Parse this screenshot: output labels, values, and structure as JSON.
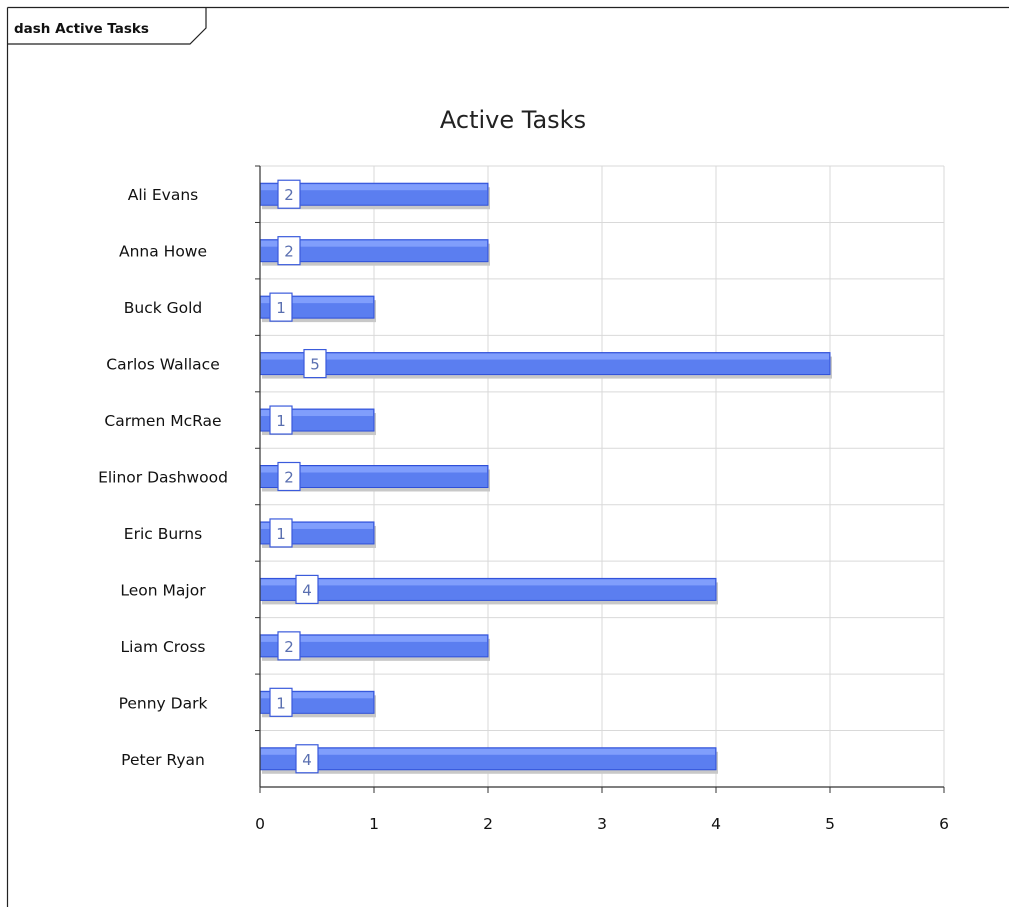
{
  "frame": {
    "label": "dash Active Tasks"
  },
  "colors": {
    "bar_fill": "#5b7ef0",
    "bar_top": "#8aa6ff",
    "bar_stroke": "#2f4fd8",
    "bar_shadow": "#c8c8c8",
    "label_box_stroke": "#3b5bdb",
    "label_text": "#5a6fb0",
    "grid": "#d9d9d9",
    "axis": "#333333"
  },
  "chart_data": {
    "type": "bar",
    "orientation": "horizontal",
    "title": "Active Tasks",
    "xlabel": "",
    "ylabel": "",
    "categories": [
      "Ali Evans",
      "Anna Howe",
      "Buck Gold",
      "Carlos Wallace",
      "Carmen McRae",
      "Elinor Dashwood",
      "Eric Burns",
      "Leon Major",
      "Liam Cross",
      "Penny Dark",
      "Peter Ryan"
    ],
    "values": [
      2,
      2,
      1,
      5,
      1,
      2,
      1,
      4,
      2,
      1,
      4
    ],
    "xlim": [
      0,
      6
    ],
    "xticks": [
      0,
      1,
      2,
      3,
      4,
      5,
      6
    ],
    "grid": true,
    "legend": "none"
  }
}
